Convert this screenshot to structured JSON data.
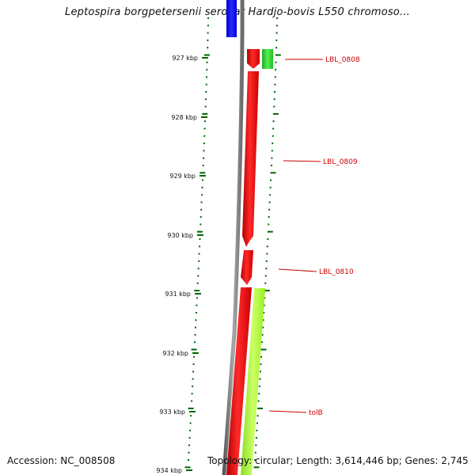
{
  "title": "Leptospira borgpetersenii serovar Hardjo-bovis L550 chromoso...",
  "map": {
    "ticks": [
      {
        "label": "927 kbp"
      },
      {
        "label": "928 kbp"
      },
      {
        "label": "929 kbp"
      },
      {
        "label": "930 kbp"
      },
      {
        "label": "931 kbp"
      },
      {
        "label": "932 kbp"
      },
      {
        "label": "933 kbp"
      },
      {
        "label": "934 kbp"
      }
    ],
    "genes": [
      {
        "label": "LBL_0808"
      },
      {
        "label": "LBL_0809"
      },
      {
        "label": "LBL_0810"
      },
      {
        "label": "tolB"
      }
    ],
    "colors": {
      "backbone": "#808080",
      "red_gene": "#ff0000",
      "blue_gene": "#0000ff",
      "green_gene": "#33cc33",
      "lime_gene": "#aaff33",
      "tick": "#006600",
      "gene_label": "#cc0000"
    }
  },
  "footer": {
    "accession": "Accession: NC_008508",
    "stats": "Topology: circular; Length: 3,614,446 bp; Genes: 2,745"
  }
}
